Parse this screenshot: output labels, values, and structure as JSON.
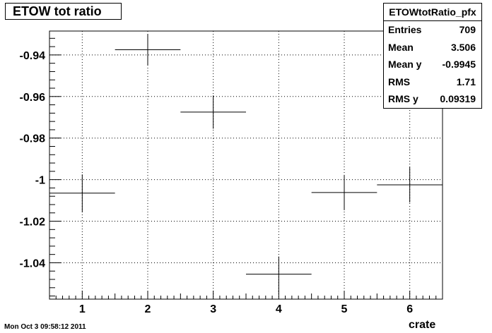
{
  "chart_data": {
    "type": "scatter",
    "title": "ETOW tot ratio",
    "xlabel": "crate",
    "ylabel": "",
    "xlim": [
      0.5,
      6.5
    ],
    "ylim": [
      -1.0575,
      -0.9285
    ],
    "grid": true,
    "x_ticks": [
      "1",
      "2",
      "3",
      "4",
      "5",
      "6"
    ],
    "y_ticks": [
      "-0.94",
      "-0.96",
      "-0.98",
      "-1",
      "-1.02",
      "-1.04"
    ],
    "y_tick_values": [
      -0.94,
      -0.96,
      -0.98,
      -1.0,
      -1.02,
      -1.04
    ],
    "series": [
      {
        "x": [
          1,
          2,
          3,
          4,
          5,
          6
        ],
        "y": [
          -1.0065,
          -0.9375,
          -0.9675,
          -1.0455,
          -1.0062,
          -1.0025
        ],
        "x_err": [
          0.5,
          0.5,
          0.5,
          0.5,
          0.5,
          0.5
        ],
        "y_err": [
          0.009,
          0.0075,
          0.008,
          0.0085,
          0.0085,
          0.0085
        ]
      }
    ]
  },
  "stats": {
    "name": "ETOWtotRatio_pfx",
    "rows": [
      {
        "label": "Entries",
        "value": "709"
      },
      {
        "label": "Mean",
        "value": "3.506"
      },
      {
        "label": "Mean y",
        "value": "-0.9945"
      },
      {
        "label": "RMS",
        "value": "1.71"
      },
      {
        "label": "RMS y",
        "value": "0.09319"
      }
    ]
  },
  "footer": {
    "timestamp": "Mon Oct  3 09:58:12 2011"
  }
}
